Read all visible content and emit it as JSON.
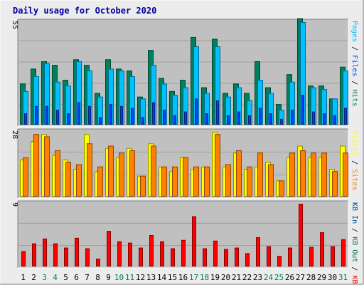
{
  "chart_data": {
    "type": "bar",
    "title": "Daily usage for October 2020",
    "colors": {
      "hits": "#00805c",
      "files": "#00c0ff",
      "pages": "#0040ff",
      "visits": "#ffff00",
      "sites": "#ff8000",
      "kbin": "#0040a0",
      "kbout": "#007040",
      "kbf": "#ff0000",
      "title": "#0000a0",
      "weekend": "#00805c",
      "panel": "#c0c0c0",
      "grid": "#a0a0a0"
    },
    "days": [
      "1",
      "2",
      "3",
      "4",
      "5",
      "6",
      "7",
      "8",
      "9",
      "10",
      "11",
      "12",
      "13",
      "14",
      "15",
      "16",
      "17",
      "18",
      "19",
      "20",
      "21",
      "22",
      "23",
      "24",
      "25",
      "26",
      "27",
      "28",
      "29",
      "30",
      "31"
    ],
    "weekend_days": [
      3,
      4,
      10,
      11,
      17,
      18,
      24,
      25,
      31
    ],
    "panels": [
      {
        "id": "hits-files-pages",
        "ymax_label": "55",
        "ymax": 55,
        "labels": [
          {
            "text": "Pages",
            "color_key": "files"
          },
          {
            "text": "Files",
            "color_key": "pages"
          },
          {
            "text": "Hits",
            "color_key": "hits"
          }
        ],
        "series": [
          {
            "key": "hits",
            "values": [
              22,
              30,
              34,
              32,
              24,
              35,
              32,
              17,
              35,
              30,
              29,
              15,
              40,
              25,
              18,
              24,
              47,
              20,
              46,
              17,
              22,
              17,
              34,
              20,
              11,
              27,
              57,
              21,
              21,
              14,
              31
            ]
          },
          {
            "key": "files",
            "values": [
              18,
              26,
              33,
              23,
              21,
              34,
              29,
              15,
              30,
              29,
              26,
              14,
              32,
              22,
              16,
              20,
              42,
              17,
              42,
              15,
              20,
              13,
              24,
              17,
              8,
              23,
              55,
              20,
              19,
              14,
              29
            ]
          },
          {
            "key": "pages",
            "values": [
              6,
              10,
              10,
              8,
              6,
              12,
              10,
              4,
              11,
              10,
              9,
              4,
              12,
              8,
              5,
              7,
              14,
              6,
              13,
              5,
              7,
              5,
              9,
              6,
              3,
              8,
              16,
              7,
              6,
              5,
              9
            ]
          }
        ]
      },
      {
        "id": "visits-sites",
        "ymax_label": "28",
        "ymax": 28,
        "labels": [
          {
            "text": "Visits",
            "color_key": "visits"
          },
          {
            "text": "Sites",
            "color_key": "sites"
          }
        ],
        "series": [
          {
            "key": "visits",
            "values": [
              16,
              24,
              27,
              18,
              16,
              12,
              27,
              11,
              21,
              17,
              21,
              9,
              23,
              13,
              11,
              17,
              12,
              13,
              28,
              13,
              19,
              12,
              13,
              15,
              7,
              17,
              22,
              17,
              17,
              12,
              22
            ]
          },
          {
            "key": "sites",
            "values": [
              17,
              27,
              26,
              20,
              15,
              14,
              23,
              13,
              22,
              19,
              20,
              9,
              22,
              13,
              13,
              17,
              13,
              13,
              27,
              14,
              20,
              13,
              19,
              14,
              7,
              19,
              20,
              19,
              19,
              11,
              19
            ]
          }
        ]
      },
      {
        "id": "kbytes",
        "ymax_label": "9",
        "ymax": 9,
        "labels": [
          {
            "text": "KB In",
            "color_key": "kbin"
          },
          {
            "text": "KB Out",
            "color_key": "kbout"
          },
          {
            "text": "KB F",
            "color_key": "kbf"
          }
        ],
        "series": [
          {
            "key": "kbf",
            "values": [
              2.2,
              3.3,
              4.0,
              3.3,
              2.7,
              4.1,
              2.6,
              1.1,
              5.1,
              3.6,
              3.4,
              2.7,
              4.5,
              3.6,
              2.6,
              3.8,
              7.2,
              2.6,
              3.7,
              2.5,
              2.7,
              1.9,
              4.2,
              2.9,
              1.5,
              2.7,
              9.0,
              2.8,
              4.9,
              2.9,
              3.9
            ]
          }
        ]
      }
    ]
  }
}
